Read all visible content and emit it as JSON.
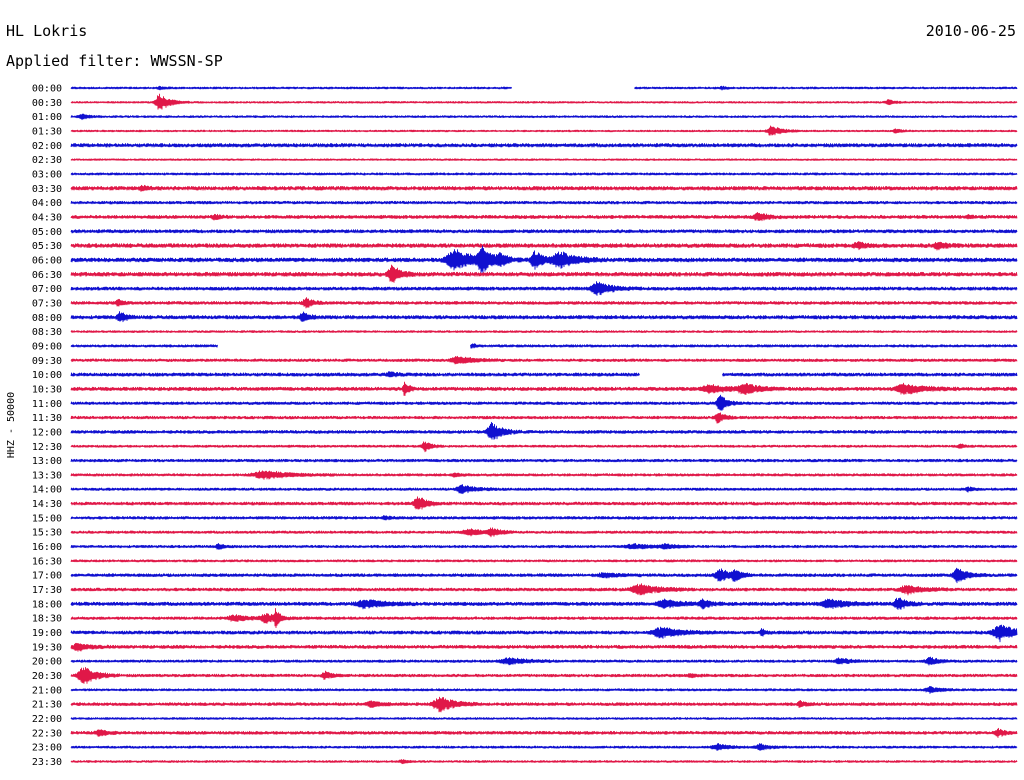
{
  "header": {
    "station": "HL Lokris",
    "date": "2010-06-25",
    "filter_label": "Applied filter: WWSSN-SP"
  },
  "colors": {
    "blue": "#1010d0",
    "red": "#e01848"
  },
  "chart_data": {
    "type": "line",
    "side_label": "HHZ - 50000",
    "rows": [
      {
        "label": "00:00",
        "color": "blue",
        "noise": 0.8,
        "gaps": [
          [
            512,
            634
          ]
        ],
        "events": [
          [
            160,
            1.5,
            4
          ],
          [
            722,
            1.5,
            4
          ]
        ]
      },
      {
        "label": "00:30",
        "color": "red",
        "noise": 0.7,
        "gaps": [],
        "events": [
          [
            160,
            8,
            10
          ],
          [
            888,
            2.5,
            6
          ]
        ]
      },
      {
        "label": "01:00",
        "color": "blue",
        "noise": 0.8,
        "gaps": [],
        "events": [
          [
            82,
            2.5,
            8
          ]
        ]
      },
      {
        "label": "01:30",
        "color": "red",
        "noise": 0.7,
        "gaps": [],
        "events": [
          [
            772,
            5,
            10
          ],
          [
            896,
            2,
            5
          ]
        ]
      },
      {
        "label": "02:00",
        "color": "blue",
        "noise": 1.4,
        "gaps": [],
        "events": []
      },
      {
        "label": "02:30",
        "color": "red",
        "noise": 0.7,
        "gaps": [],
        "events": []
      },
      {
        "label": "03:00",
        "color": "blue",
        "noise": 0.9,
        "gaps": [],
        "events": []
      },
      {
        "label": "03:30",
        "color": "red",
        "noise": 1.5,
        "gaps": [],
        "events": [
          [
            142,
            2,
            6
          ]
        ]
      },
      {
        "label": "04:00",
        "color": "blue",
        "noise": 1.1,
        "gaps": [],
        "events": []
      },
      {
        "label": "04:30",
        "color": "red",
        "noise": 1.3,
        "gaps": [],
        "events": [
          [
            215,
            2,
            6
          ],
          [
            758,
            3.5,
            10
          ],
          [
            968,
            1.5,
            5
          ]
        ]
      },
      {
        "label": "05:00",
        "color": "blue",
        "noise": 1.3,
        "gaps": [],
        "events": []
      },
      {
        "label": "05:30",
        "color": "red",
        "noise": 1.6,
        "gaps": [],
        "events": [
          [
            858,
            3,
            8
          ],
          [
            938,
            3,
            8
          ]
        ]
      },
      {
        "label": "06:00",
        "color": "blue",
        "noise": 1.6,
        "gaps": [],
        "events": [
          [
            455,
            10,
            18
          ],
          [
            482,
            12,
            10
          ],
          [
            500,
            4,
            8
          ],
          [
            535,
            9,
            8
          ],
          [
            560,
            8,
            16
          ]
        ]
      },
      {
        "label": "06:30",
        "color": "red",
        "noise": 1.6,
        "gaps": [],
        "events": [
          [
            392,
            9,
            8
          ]
        ]
      },
      {
        "label": "07:00",
        "color": "blue",
        "noise": 1.3,
        "gaps": [],
        "events": [
          [
            598,
            6,
            14
          ]
        ]
      },
      {
        "label": "07:30",
        "color": "red",
        "noise": 1.2,
        "gaps": [],
        "events": [
          [
            118,
            3,
            5
          ],
          [
            306,
            6,
            6
          ]
        ]
      },
      {
        "label": "08:00",
        "color": "blue",
        "noise": 1.4,
        "gaps": [],
        "events": [
          [
            120,
            5,
            6
          ],
          [
            303,
            5,
            6
          ]
        ]
      },
      {
        "label": "08:30",
        "color": "red",
        "noise": 0.8,
        "gaps": [],
        "events": []
      },
      {
        "label": "09:00",
        "color": "blue",
        "noise": 1.0,
        "gaps": [
          [
            218,
            470
          ]
        ],
        "events": [
          [
            472,
            2,
            4
          ]
        ]
      },
      {
        "label": "09:30",
        "color": "red",
        "noise": 1.1,
        "gaps": [],
        "events": [
          [
            458,
            4,
            14
          ]
        ]
      },
      {
        "label": "10:00",
        "color": "blue",
        "noise": 1.3,
        "gaps": [
          [
            640,
            722
          ]
        ],
        "events": [
          [
            390,
            2,
            8
          ]
        ]
      },
      {
        "label": "10:30",
        "color": "red",
        "noise": 1.4,
        "gaps": [],
        "events": [
          [
            405,
            7,
            4
          ],
          [
            710,
            4,
            16
          ],
          [
            745,
            5,
            14
          ],
          [
            905,
            5,
            18
          ]
        ]
      },
      {
        "label": "11:00",
        "color": "blue",
        "noise": 1.1,
        "gaps": [],
        "events": [
          [
            720,
            10,
            6
          ]
        ]
      },
      {
        "label": "11:30",
        "color": "red",
        "noise": 1.1,
        "gaps": [],
        "events": [
          [
            718,
            6,
            6
          ]
        ]
      },
      {
        "label": "12:00",
        "color": "blue",
        "noise": 1.2,
        "gaps": [],
        "events": [
          [
            492,
            9,
            10
          ]
        ]
      },
      {
        "label": "12:30",
        "color": "red",
        "noise": 0.9,
        "gaps": [],
        "events": [
          [
            425,
            5,
            6
          ],
          [
            960,
            2,
            5
          ]
        ]
      },
      {
        "label": "13:00",
        "color": "blue",
        "noise": 1.1,
        "gaps": [],
        "events": []
      },
      {
        "label": "13:30",
        "color": "red",
        "noise": 1.0,
        "gaps": [],
        "events": [
          [
            265,
            4,
            24
          ],
          [
            455,
            2,
            6
          ]
        ]
      },
      {
        "label": "14:00",
        "color": "blue",
        "noise": 1.0,
        "gaps": [],
        "events": [
          [
            462,
            4,
            12
          ],
          [
            968,
            2,
            5
          ]
        ]
      },
      {
        "label": "14:30",
        "color": "red",
        "noise": 1.2,
        "gaps": [],
        "events": [
          [
            418,
            8,
            8
          ]
        ]
      },
      {
        "label": "15:00",
        "color": "blue",
        "noise": 1.1,
        "gaps": [],
        "events": [
          [
            385,
            2,
            5
          ]
        ]
      },
      {
        "label": "15:30",
        "color": "red",
        "noise": 1.0,
        "gaps": [],
        "events": [
          [
            470,
            3,
            14
          ],
          [
            492,
            4,
            8
          ]
        ]
      },
      {
        "label": "16:00",
        "color": "blue",
        "noise": 1.0,
        "gaps": [],
        "events": [
          [
            218,
            3,
            5
          ],
          [
            635,
            2,
            20
          ],
          [
            665,
            2,
            10
          ]
        ]
      },
      {
        "label": "16:30",
        "color": "red",
        "noise": 0.9,
        "gaps": [],
        "events": []
      },
      {
        "label": "17:00",
        "color": "blue",
        "noise": 1.2,
        "gaps": [],
        "events": [
          [
            605,
            2,
            14
          ],
          [
            720,
            7,
            10
          ],
          [
            735,
            5,
            6
          ],
          [
            958,
            7,
            10
          ]
        ]
      },
      {
        "label": "17:30",
        "color": "red",
        "noise": 1.2,
        "gaps": [],
        "events": [
          [
            640,
            5,
            18
          ],
          [
            908,
            4,
            16
          ]
        ]
      },
      {
        "label": "18:00",
        "color": "blue",
        "noise": 1.4,
        "gaps": [],
        "events": [
          [
            365,
            4,
            18
          ],
          [
            665,
            4,
            16
          ],
          [
            703,
            4,
            8
          ],
          [
            830,
            4,
            18
          ],
          [
            898,
            6,
            8
          ]
        ]
      },
      {
        "label": "18:30",
        "color": "red",
        "noise": 1.1,
        "gaps": [],
        "events": [
          [
            235,
            3,
            14
          ],
          [
            266,
            4,
            12
          ],
          [
            276,
            10,
            3
          ]
        ]
      },
      {
        "label": "19:00",
        "color": "blue",
        "noise": 1.3,
        "gaps": [],
        "events": [
          [
            662,
            5,
            18
          ],
          [
            762,
            3,
            4
          ],
          [
            1000,
            8,
            14
          ]
        ]
      },
      {
        "label": "19:30",
        "color": "red",
        "noise": 1.3,
        "gaps": [],
        "events": [
          [
            78,
            4,
            10
          ]
        ]
      },
      {
        "label": "20:00",
        "color": "blue",
        "noise": 1.0,
        "gaps": [],
        "events": [
          [
            510,
            3,
            18
          ],
          [
            840,
            3,
            10
          ],
          [
            930,
            4,
            8
          ]
        ]
      },
      {
        "label": "20:30",
        "color": "red",
        "noise": 1.1,
        "gaps": [],
        "events": [
          [
            84,
            9,
            12
          ],
          [
            325,
            4,
            6
          ],
          [
            690,
            2,
            6
          ]
        ]
      },
      {
        "label": "21:00",
        "color": "blue",
        "noise": 0.9,
        "gaps": [],
        "events": [
          [
            930,
            3,
            10
          ]
        ]
      },
      {
        "label": "21:30",
        "color": "red",
        "noise": 1.2,
        "gaps": [],
        "events": [
          [
            372,
            3,
            10
          ],
          [
            440,
            7,
            14
          ],
          [
            800,
            3,
            5
          ]
        ]
      },
      {
        "label": "22:00",
        "color": "blue",
        "noise": 0.8,
        "gaps": [],
        "events": []
      },
      {
        "label": "22:30",
        "color": "red",
        "noise": 1.2,
        "gaps": [],
        "events": [
          [
            100,
            3,
            8
          ],
          [
            998,
            4,
            6
          ]
        ]
      },
      {
        "label": "23:00",
        "color": "blue",
        "noise": 0.9,
        "gaps": [],
        "events": [
          [
            718,
            3,
            12
          ],
          [
            760,
            3,
            10
          ]
        ]
      },
      {
        "label": "23:30",
        "color": "red",
        "noise": 0.8,
        "gaps": [],
        "events": [
          [
            402,
            2,
            5
          ]
        ]
      }
    ]
  }
}
